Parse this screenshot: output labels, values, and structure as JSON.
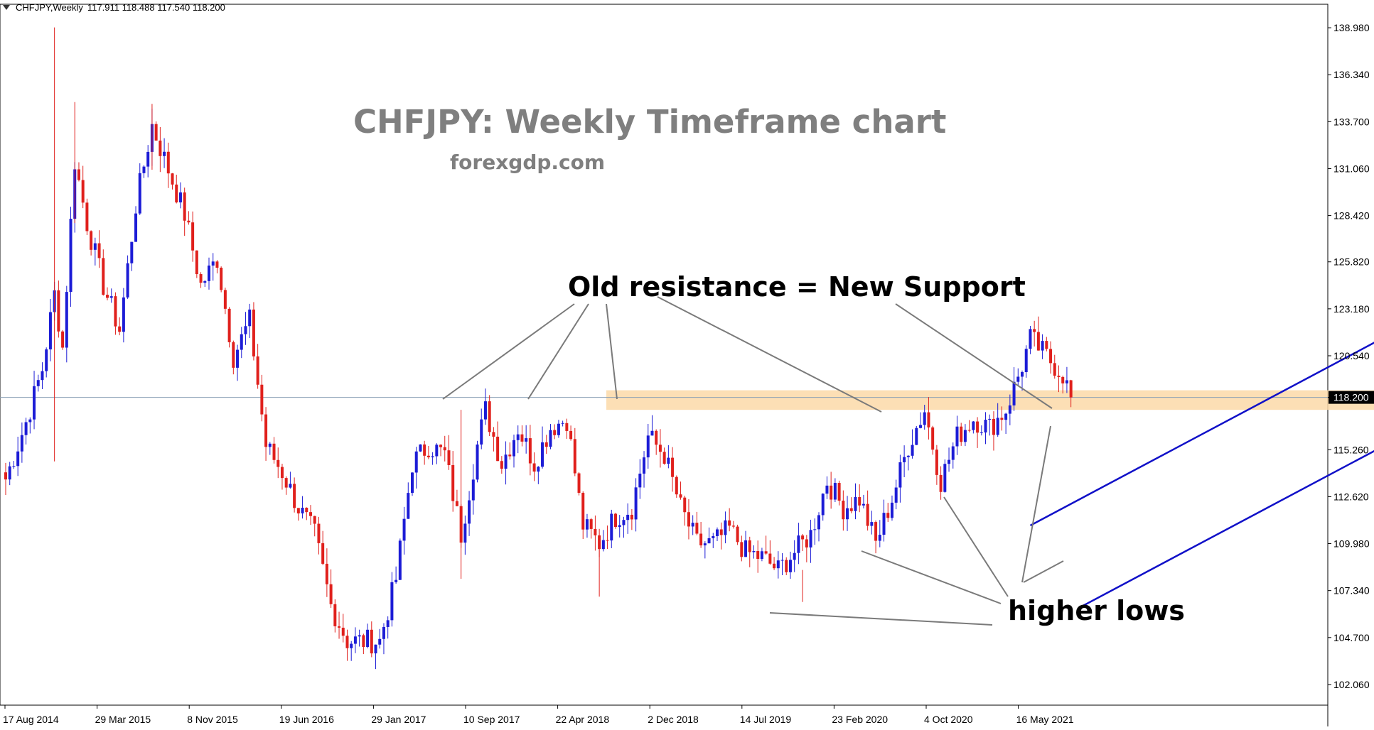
{
  "header": {
    "symbol": "CHFJPY,Weekly",
    "ohlc": "117.911 118.488 117.540 118.200"
  },
  "annotations": {
    "title": "CHFJPY: Weekly Timeframe chart",
    "subtitle": "forexgdp.com",
    "resistance_label": "Old resistance = New Support",
    "lows_label": "higher lows"
  },
  "colors": {
    "bull": "#1c1cd6",
    "bear": "#e0201c",
    "channel": "#1010c8",
    "zone": "#fbd9a8",
    "pointer": "#7a7a7a",
    "price_line": "#8aa0b4"
  },
  "chart_data": {
    "type": "candlestick",
    "symbol": "CHFJPY",
    "timeframe": "Weekly",
    "current_price": 118.2,
    "last_ohlc": {
      "open": 117.911,
      "high": 118.488,
      "low": 117.54,
      "close": 118.2
    },
    "ylim": [
      100.9,
      140.3
    ],
    "y_ticks": [
      "138.980",
      "136.340",
      "133.700",
      "131.060",
      "128.420",
      "125.820",
      "123.180",
      "120.540",
      "118.200",
      "115.260",
      "112.620",
      "109.980",
      "107.340",
      "104.700",
      "102.060"
    ],
    "x_ticks": [
      "17 Aug 2014",
      "29 Mar 2015",
      "8 Nov 2015",
      "19 Jun 2016",
      "29 Jan 2017",
      "10 Sep 2017",
      "22 Apr 2018",
      "2 Dec 2018",
      "14 Jul 2019",
      "23 Feb 2020",
      "4 Oct 2020",
      "16 May 2021"
    ],
    "series_anchors": [
      [
        0,
        113.6
      ],
      [
        5,
        116.8
      ],
      [
        9,
        119.8
      ],
      [
        12,
        124.0
      ],
      [
        14,
        121.0
      ],
      [
        17,
        131.5
      ],
      [
        20,
        128.0
      ],
      [
        24,
        124.5
      ],
      [
        28,
        122.0
      ],
      [
        32,
        129.0
      ],
      [
        36,
        133.5
      ],
      [
        40,
        131.0
      ],
      [
        44,
        128.5
      ],
      [
        48,
        124.5
      ],
      [
        52,
        126.0
      ],
      [
        56,
        120.5
      ],
      [
        60,
        122.5
      ],
      [
        64,
        115.5
      ],
      [
        68,
        114.0
      ],
      [
        72,
        112.0
      ],
      [
        76,
        110.5
      ],
      [
        80,
        106.5
      ],
      [
        84,
        104.5
      ],
      [
        88,
        104.5
      ],
      [
        92,
        104.5
      ],
      [
        96,
        108.0
      ],
      [
        100,
        114.5
      ],
      [
        104,
        115.5
      ],
      [
        108,
        115.0
      ],
      [
        112,
        110.5
      ],
      [
        116,
        115.5
      ],
      [
        118,
        117.5
      ],
      [
        122,
        114.5
      ],
      [
        126,
        116.5
      ],
      [
        130,
        114.5
      ],
      [
        134,
        116.5
      ],
      [
        138,
        117.0
      ],
      [
        142,
        111.0
      ],
      [
        146,
        110.0
      ],
      [
        150,
        111.5
      ],
      [
        154,
        112.0
      ],
      [
        158,
        116.0
      ],
      [
        162,
        115.0
      ],
      [
        166,
        112.0
      ],
      [
        170,
        110.0
      ],
      [
        174,
        110.0
      ],
      [
        178,
        110.8
      ],
      [
        182,
        109.5
      ],
      [
        186,
        109.2
      ],
      [
        190,
        108.5
      ],
      [
        194,
        109.5
      ],
      [
        198,
        110.5
      ],
      [
        202,
        113.5
      ],
      [
        206,
        112.0
      ],
      [
        210,
        112.5
      ],
      [
        214,
        110.0
      ],
      [
        218,
        112.5
      ],
      [
        222,
        115.5
      ],
      [
        226,
        117.5
      ],
      [
        230,
        113.5
      ],
      [
        234,
        116.0
      ],
      [
        238,
        117.0
      ],
      [
        242,
        116.5
      ],
      [
        246,
        117.5
      ],
      [
        250,
        120.0
      ],
      [
        252,
        121.5
      ],
      [
        256,
        120.5
      ],
      [
        260,
        119.5
      ],
      [
        262,
        118.2
      ]
    ],
    "channel": {
      "upper": [
        {
          "date": "Jun 2019",
          "price": 111.0
        },
        {
          "date": "Jan 2023",
          "price": 133.7
        }
      ],
      "lower": [
        {
          "date": "Sep 2019",
          "price": 106.5
        },
        {
          "date": "Jan 2023",
          "price": 127.6
        }
      ]
    },
    "support_zone": {
      "from": "Jun 2017",
      "to": "Oct 2021",
      "low": 117.5,
      "high": 118.6
    }
  }
}
